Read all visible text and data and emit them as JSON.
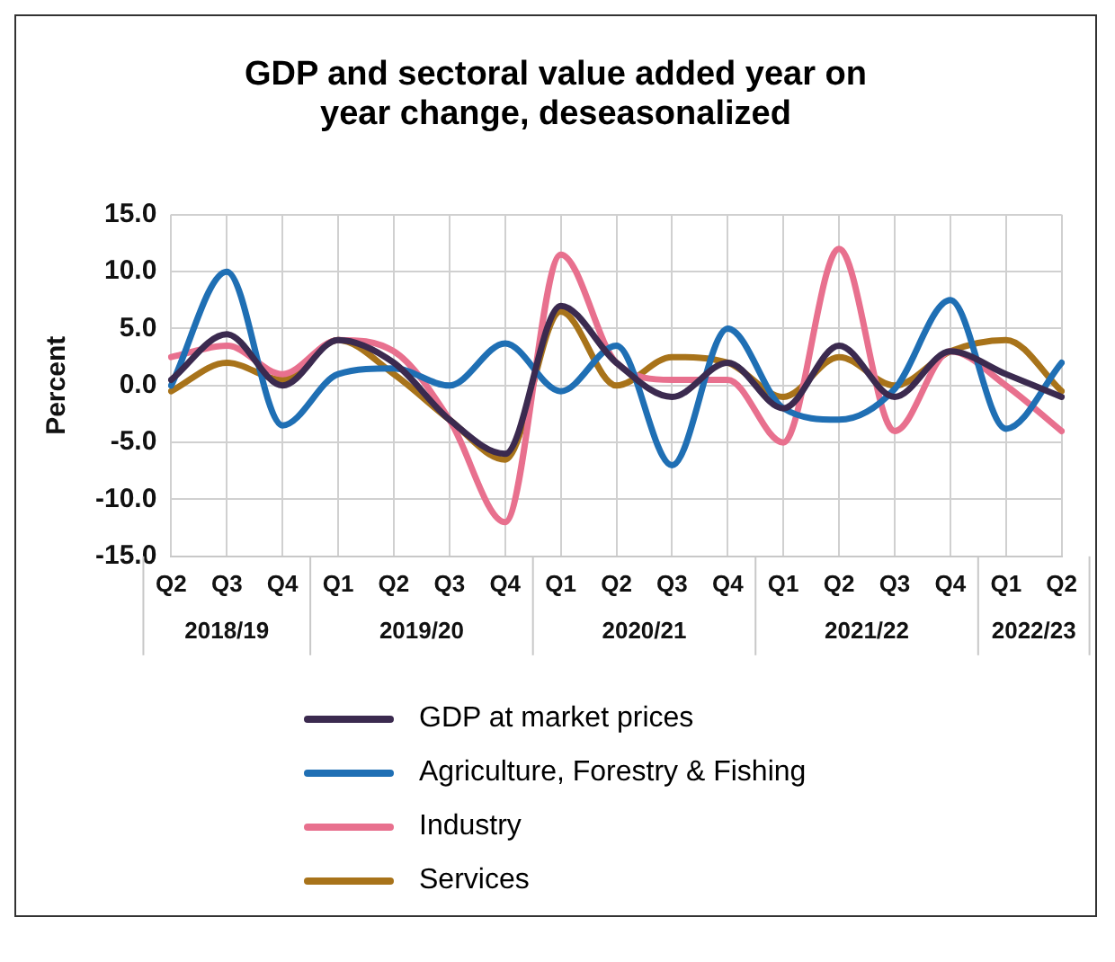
{
  "chart_data": {
    "type": "line",
    "title": "GDP and sectoral value added year on year change, deseasonalized",
    "ylabel": "Percent",
    "categories": [
      "Q2",
      "Q3",
      "Q4",
      "Q1",
      "Q2",
      "Q3",
      "Q4",
      "Q1",
      "Q2",
      "Q3",
      "Q4",
      "Q1",
      "Q2",
      "Q3",
      "Q4",
      "Q1",
      "Q2"
    ],
    "annotations": [
      "2018/19",
      "2019/20",
      "2020/21",
      "2021/22",
      "2022/23"
    ],
    "series": [
      {
        "name": "GDP at market prices",
        "color": "#3b2a4f",
        "values": [
          0.5,
          4.5,
          0,
          4,
          2,
          -3,
          -6,
          7,
          2,
          -1,
          2,
          -2,
          3.5,
          -1,
          3,
          1,
          -1
        ]
      },
      {
        "name": "Agriculture, Forestry & Fishing",
        "color": "#1f6fb4",
        "values": [
          0,
          10,
          -3.5,
          1,
          1.5,
          0,
          3.7,
          -0.5,
          3.5,
          -7,
          5,
          -2,
          -3,
          -0.3,
          7.5,
          -3.8,
          2
        ]
      },
      {
        "name": "Industry",
        "color": "#e8708e",
        "values": [
          2.5,
          3.5,
          1,
          4,
          3,
          -3,
          -12,
          11.5,
          2,
          0.5,
          0.5,
          -5,
          12,
          -4,
          3,
          0,
          -4
        ]
      },
      {
        "name": "Services",
        "color": "#a8731a",
        "values": [
          -0.5,
          2,
          0.5,
          4,
          1,
          -3,
          -6.5,
          6.5,
          0,
          2.5,
          2,
          -1,
          2.5,
          0,
          3,
          4,
          -0.5
        ]
      }
    ],
    "ylim": [
      -15,
      15
    ],
    "yticks": [
      {
        "value": -15,
        "label": "-15.0"
      },
      {
        "value": -10,
        "label": "-10.0"
      },
      {
        "value": -5,
        "label": "-5.0"
      },
      {
        "value": 0,
        "label": "0.0"
      },
      {
        "value": 5,
        "label": "5.0"
      },
      {
        "value": 10,
        "label": "10.0"
      },
      {
        "value": 15,
        "label": "15.0"
      }
    ],
    "grid": true,
    "legend": "bottom",
    "marker": "none",
    "line_style": "solid"
  }
}
